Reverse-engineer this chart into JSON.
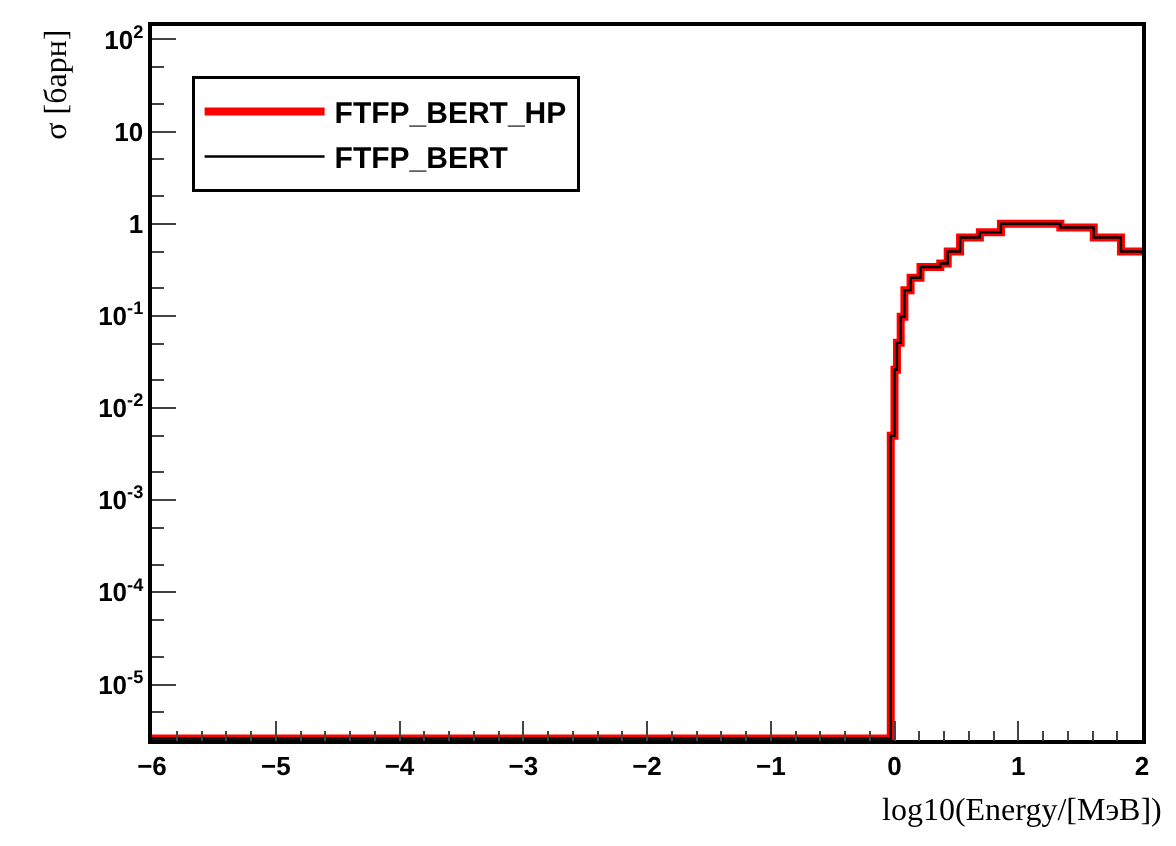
{
  "chart_data": {
    "type": "step",
    "xlabel": "log10(Energy/[МэВ])",
    "ylabel": "σ [барн]",
    "log": "y",
    "legend": "top left",
    "x": [
      -6,
      -0.03,
      0.0,
      0.02,
      0.05,
      0.08,
      0.13,
      0.21,
      0.37,
      0.43,
      0.53,
      0.69,
      0.86,
      1.18,
      1.34,
      1.61,
      1.83,
      2.0
    ],
    "series": [
      {
        "name": "FTFP_BERT_HP",
        "color": "#ff0000",
        "values": [
          2.6e-06,
          0.005,
          0.026,
          0.051,
          0.098,
          0.19,
          0.26,
          0.34,
          0.37,
          0.5,
          0.71,
          0.81,
          1.0,
          1.0,
          0.91,
          0.71,
          0.5,
          0.48
        ]
      },
      {
        "name": "FTFP_BERT",
        "color": "#000000",
        "values": [
          2.6e-06,
          0.005,
          0.026,
          0.051,
          0.098,
          0.19,
          0.26,
          0.34,
          0.37,
          0.5,
          0.71,
          0.81,
          1.0,
          1.0,
          0.91,
          0.71,
          0.5,
          0.48
        ]
      }
    ],
    "xlim": [
      -6,
      2
    ],
    "xticks": [
      -6,
      -5,
      -4,
      -3,
      -2,
      -1,
      0,
      1,
      2
    ],
    "ylim": [
      2.5e-06,
      140
    ],
    "yticks": [
      {
        "value": 1e-05,
        "label": "10$^{-5}$"
      },
      {
        "value": 0.0001,
        "label": "10$^{-4}$"
      },
      {
        "value": 0.001,
        "label": "10$^{-3}$"
      },
      {
        "value": 0.01,
        "label": "10$^{-2}$"
      },
      {
        "value": 0.1,
        "label": "10$^{-1}$"
      },
      {
        "value": 1,
        "label": "1"
      },
      {
        "value": 10,
        "label": "10"
      },
      {
        "value": 100,
        "label": "10$^{2}$"
      }
    ]
  }
}
